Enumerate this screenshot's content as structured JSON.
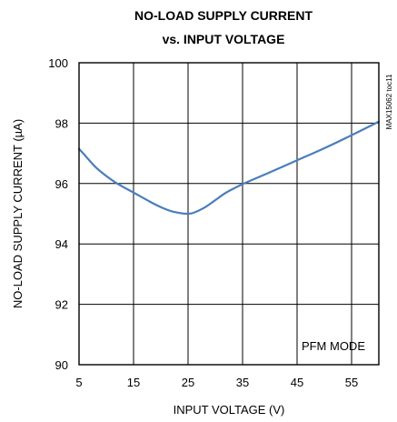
{
  "chart_data": {
    "type": "line",
    "title_line1": "NO-LOAD SUPPLY CURRENT",
    "title_line2": "vs. INPUT VOLTAGE",
    "xlabel": "INPUT VOLTAGE (V)",
    "ylabel": "NO-LOAD SUPPLY CURRENT (µA)",
    "annotation": "PFM MODE",
    "figure_id": "MAX15062 toc11",
    "xlim": [
      5,
      60
    ],
    "ylim": [
      90,
      100
    ],
    "x_ticks": [
      "5",
      "15",
      "25",
      "35",
      "45",
      "55"
    ],
    "y_ticks": [
      "90",
      "92",
      "94",
      "96",
      "98",
      "100"
    ],
    "grid": true,
    "series": [
      {
        "color": "#4a7ebb",
        "x": [
          5,
          6,
          8,
          10,
          12,
          15,
          18,
          20,
          22,
          24,
          25,
          26,
          28,
          30,
          32,
          35,
          40,
          45,
          50,
          55,
          60
        ],
        "y": [
          97.15,
          96.95,
          96.55,
          96.25,
          96.0,
          95.7,
          95.4,
          95.22,
          95.08,
          95.01,
          95.0,
          95.03,
          95.2,
          95.45,
          95.7,
          95.98,
          96.37,
          96.77,
          97.17,
          97.6,
          98.05
        ]
      }
    ]
  }
}
